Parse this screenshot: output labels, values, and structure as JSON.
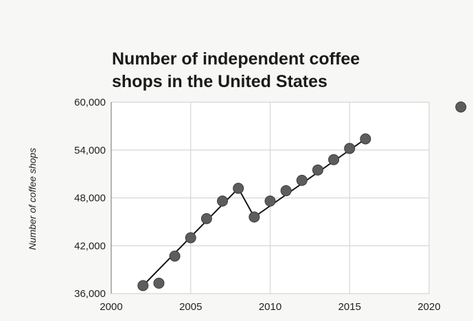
{
  "chart_data": {
    "type": "scatter",
    "title_lines": [
      "Number of independent coffee",
      "shops in the United States"
    ],
    "xlabel": "",
    "ylabel": "Number of coffee shops",
    "xlim": [
      2000,
      2020
    ],
    "ylim": [
      36000,
      60000
    ],
    "x_ticks": [
      2000,
      2005,
      2010,
      2015,
      2020
    ],
    "x_tick_labels": [
      "2000",
      "2005",
      "2010",
      "2015",
      "2020"
    ],
    "y_ticks": [
      36000,
      42000,
      48000,
      54000,
      60000
    ],
    "y_tick_labels": [
      "36,000",
      "42,000",
      "48,000",
      "54,000",
      "60,000"
    ],
    "grid": true,
    "series": [
      {
        "points": [
          {
            "x": 2002,
            "y": 37000
          },
          {
            "x": 2003,
            "y": 37300
          },
          {
            "x": 2004,
            "y": 40700
          },
          {
            "x": 2005,
            "y": 43000
          },
          {
            "x": 2006,
            "y": 45400
          },
          {
            "x": 2007,
            "y": 47600
          },
          {
            "x": 2008,
            "y": 49200
          },
          {
            "x": 2009,
            "y": 45600
          },
          {
            "x": 2010,
            "y": 47600
          },
          {
            "x": 2011,
            "y": 48900
          },
          {
            "x": 2012,
            "y": 50200
          },
          {
            "x": 2013,
            "y": 51500
          },
          {
            "x": 2014,
            "y": 52800
          },
          {
            "x": 2015,
            "y": 54200
          },
          {
            "x": 2016,
            "y": 55400
          }
        ]
      }
    ],
    "trend_lines": [
      {
        "from": {
          "x": 2002,
          "y": 37000
        },
        "to": {
          "x": 2008,
          "y": 49200
        }
      },
      {
        "from": {
          "x": 2008,
          "y": 49200
        },
        "to": {
          "x": 2009,
          "y": 45600
        }
      },
      {
        "from": {
          "x": 2009,
          "y": 45600
        },
        "to": {
          "x": 2016,
          "y": 55400
        }
      }
    ],
    "extra_points": [
      {
        "x": 2022,
        "y": 59400
      }
    ],
    "colors": {
      "marker": "#5d5d5d",
      "marker_edge": "#3a3a3a",
      "line": "#141414",
      "grid": "#d6d6d6",
      "axis": "#bfbfbf"
    }
  }
}
